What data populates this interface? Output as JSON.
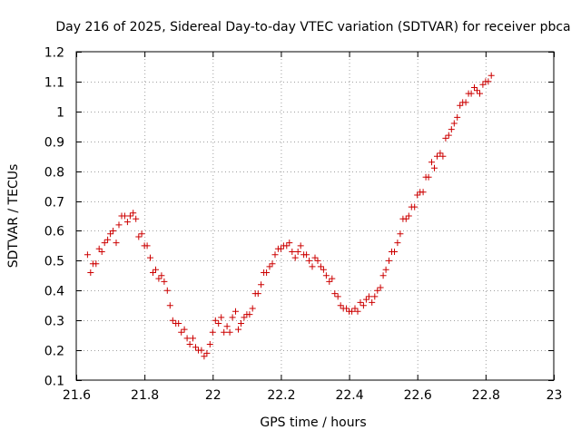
{
  "chart_data": {
    "type": "scatter",
    "title": "Day 216 of 2025, Sidereal Day-to-day VTEC variation (SDTVAR) for receiver pbca",
    "xlabel": "GPS time / hours",
    "ylabel": "SDTVAR / TECUs",
    "xlim": [
      21.6,
      23.0
    ],
    "ylim": [
      0.1,
      1.2
    ],
    "xticks": [
      21.6,
      21.8,
      22.0,
      22.2,
      22.4,
      22.6,
      22.8,
      23.0
    ],
    "xtick_labels": [
      "21.6",
      "21.8",
      "22",
      "22.2",
      "22.4",
      "22.6",
      "22.8",
      "23"
    ],
    "yticks": [
      0.1,
      0.2,
      0.3,
      0.4,
      0.5,
      0.6,
      0.7,
      0.8,
      0.9,
      1.0,
      1.1,
      1.2
    ],
    "ytick_labels": [
      "0.1",
      "0.2",
      "0.3",
      "0.4",
      "0.5",
      "0.6",
      "0.7",
      "0.8",
      "0.9",
      "1",
      "1.1",
      "1.2"
    ],
    "grid": true,
    "marker": "+",
    "colors": {
      "marker": "#cc0000",
      "grid": "#a0a0a0",
      "axis": "#000000",
      "background": "#ffffff"
    },
    "series": [
      {
        "name": "SDTVAR",
        "points": [
          [
            21.633,
            0.52
          ],
          [
            21.642,
            0.46
          ],
          [
            21.649,
            0.49
          ],
          [
            21.658,
            0.49
          ],
          [
            21.667,
            0.54
          ],
          [
            21.675,
            0.53
          ],
          [
            21.683,
            0.56
          ],
          [
            21.692,
            0.57
          ],
          [
            21.7,
            0.59
          ],
          [
            21.708,
            0.6
          ],
          [
            21.717,
            0.56
          ],
          [
            21.725,
            0.62
          ],
          [
            21.733,
            0.65
          ],
          [
            21.742,
            0.65
          ],
          [
            21.75,
            0.63
          ],
          [
            21.758,
            0.65
          ],
          [
            21.767,
            0.66
          ],
          [
            21.775,
            0.64
          ],
          [
            21.783,
            0.58
          ],
          [
            21.792,
            0.59
          ],
          [
            21.8,
            0.55
          ],
          [
            21.808,
            0.55
          ],
          [
            21.817,
            0.51
          ],
          [
            21.825,
            0.46
          ],
          [
            21.833,
            0.47
          ],
          [
            21.842,
            0.44
          ],
          [
            21.85,
            0.45
          ],
          [
            21.858,
            0.43
          ],
          [
            21.867,
            0.4
          ],
          [
            21.875,
            0.35
          ],
          [
            21.883,
            0.3
          ],
          [
            21.892,
            0.29
          ],
          [
            21.9,
            0.29
          ],
          [
            21.908,
            0.26
          ],
          [
            21.917,
            0.27
          ],
          [
            21.925,
            0.24
          ],
          [
            21.933,
            0.22
          ],
          [
            21.942,
            0.24
          ],
          [
            21.95,
            0.21
          ],
          [
            21.958,
            0.2
          ],
          [
            21.967,
            0.2
          ],
          [
            21.975,
            0.18
          ],
          [
            21.983,
            0.19
          ],
          [
            21.992,
            0.22
          ],
          [
            22.0,
            0.26
          ],
          [
            22.008,
            0.3
          ],
          [
            22.017,
            0.29
          ],
          [
            22.025,
            0.31
          ],
          [
            22.033,
            0.26
          ],
          [
            22.042,
            0.28
          ],
          [
            22.05,
            0.26
          ],
          [
            22.058,
            0.31
          ],
          [
            22.067,
            0.33
          ],
          [
            22.075,
            0.27
          ],
          [
            22.083,
            0.29
          ],
          [
            22.092,
            0.31
          ],
          [
            22.1,
            0.32
          ],
          [
            22.108,
            0.32
          ],
          [
            22.117,
            0.34
          ],
          [
            22.125,
            0.39
          ],
          [
            22.133,
            0.39
          ],
          [
            22.142,
            0.42
          ],
          [
            22.15,
            0.46
          ],
          [
            22.158,
            0.46
          ],
          [
            22.167,
            0.48
          ],
          [
            22.175,
            0.49
          ],
          [
            22.183,
            0.52
          ],
          [
            22.192,
            0.54
          ],
          [
            22.2,
            0.54
          ],
          [
            22.208,
            0.55
          ],
          [
            22.217,
            0.55
          ],
          [
            22.225,
            0.56
          ],
          [
            22.233,
            0.53
          ],
          [
            22.242,
            0.51
          ],
          [
            22.25,
            0.53
          ],
          [
            22.258,
            0.55
          ],
          [
            22.267,
            0.52
          ],
          [
            22.275,
            0.52
          ],
          [
            22.283,
            0.5
          ],
          [
            22.292,
            0.48
          ],
          [
            22.3,
            0.51
          ],
          [
            22.308,
            0.5
          ],
          [
            22.317,
            0.48
          ],
          [
            22.325,
            0.47
          ],
          [
            22.333,
            0.45
          ],
          [
            22.342,
            0.43
          ],
          [
            22.35,
            0.44
          ],
          [
            22.358,
            0.39
          ],
          [
            22.367,
            0.38
          ],
          [
            22.375,
            0.35
          ],
          [
            22.383,
            0.34
          ],
          [
            22.392,
            0.34
          ],
          [
            22.4,
            0.33
          ],
          [
            22.408,
            0.33
          ],
          [
            22.417,
            0.34
          ],
          [
            22.425,
            0.33
          ],
          [
            22.433,
            0.36
          ],
          [
            22.442,
            0.35
          ],
          [
            22.45,
            0.37
          ],
          [
            22.458,
            0.38
          ],
          [
            22.467,
            0.36
          ],
          [
            22.475,
            0.38
          ],
          [
            22.483,
            0.4
          ],
          [
            22.492,
            0.41
          ],
          [
            22.5,
            0.45
          ],
          [
            22.508,
            0.47
          ],
          [
            22.517,
            0.5
          ],
          [
            22.525,
            0.53
          ],
          [
            22.533,
            0.53
          ],
          [
            22.542,
            0.56
          ],
          [
            22.55,
            0.59
          ],
          [
            22.558,
            0.64
          ],
          [
            22.567,
            0.64
          ],
          [
            22.575,
            0.65
          ],
          [
            22.583,
            0.68
          ],
          [
            22.592,
            0.68
          ],
          [
            22.6,
            0.72
          ],
          [
            22.608,
            0.73
          ],
          [
            22.617,
            0.73
          ],
          [
            22.625,
            0.78
          ],
          [
            22.633,
            0.78
          ],
          [
            22.642,
            0.83
          ],
          [
            22.65,
            0.81
          ],
          [
            22.658,
            0.85
          ],
          [
            22.667,
            0.86
          ],
          [
            22.675,
            0.85
          ],
          [
            22.683,
            0.91
          ],
          [
            22.692,
            0.92
          ],
          [
            22.7,
            0.94
          ],
          [
            22.708,
            0.96
          ],
          [
            22.717,
            0.98
          ],
          [
            22.725,
            1.02
          ],
          [
            22.733,
            1.03
          ],
          [
            22.742,
            1.03
          ],
          [
            22.75,
            1.06
          ],
          [
            22.758,
            1.06
          ],
          [
            22.767,
            1.08
          ],
          [
            22.775,
            1.07
          ],
          [
            22.783,
            1.06
          ],
          [
            22.792,
            1.09
          ],
          [
            22.8,
            1.1
          ],
          [
            22.808,
            1.1
          ],
          [
            22.817,
            1.12
          ]
        ]
      }
    ]
  }
}
